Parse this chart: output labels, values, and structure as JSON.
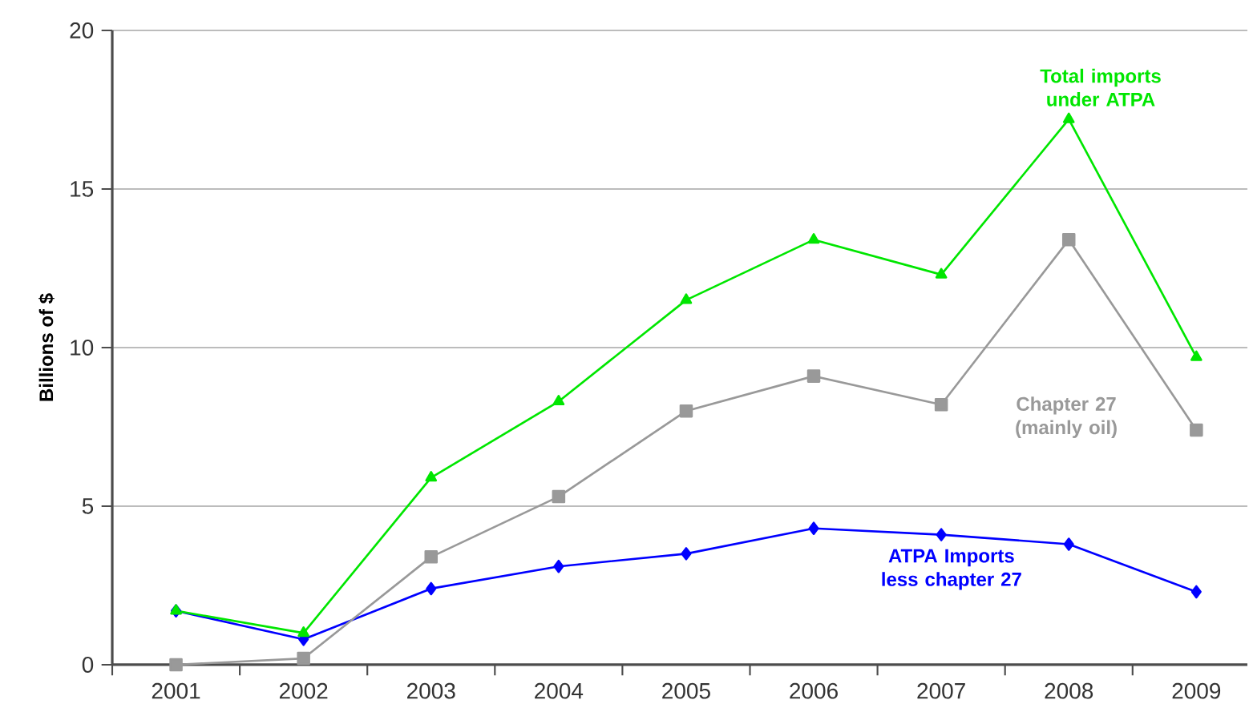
{
  "chart_data": {
    "type": "line",
    "ylabel": "Billions of $",
    "categories": [
      "2001",
      "2002",
      "2003",
      "2004",
      "2005",
      "2006",
      "2007",
      "2008",
      "2009"
    ],
    "series": [
      {
        "name": "Total imports under ATPA",
        "color": "#00e600",
        "marker": "triangle",
        "values": [
          1.7,
          1.0,
          5.9,
          8.3,
          11.5,
          13.4,
          12.3,
          17.2,
          9.7
        ]
      },
      {
        "name": "Chapter 27 (mainly oil)",
        "color": "#999999",
        "marker": "square",
        "values": [
          0,
          0.2,
          3.4,
          5.3,
          8.0,
          9.1,
          8.2,
          13.4,
          7.4
        ]
      },
      {
        "name": "ATPA Imports less chapter 27",
        "color": "#0000ff",
        "marker": "diamond",
        "values": [
          1.7,
          0.8,
          2.4,
          3.1,
          3.5,
          4.3,
          4.1,
          3.8,
          2.3
        ]
      }
    ],
    "ylim": [
      0,
      20
    ],
    "yticks": [
      0,
      5,
      10,
      15,
      20
    ],
    "grid": "y"
  }
}
